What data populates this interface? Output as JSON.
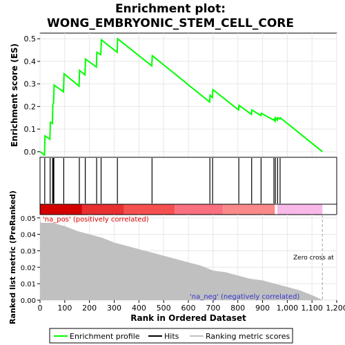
{
  "title_line1": "Enrichment plot:",
  "title_line2": "WONG_EMBRYONIC_STEM_CELL_CORE",
  "colors": {
    "es_line": "#00ff00",
    "hits": "#000000",
    "metric_fill": "#c0c0c0",
    "pos_label": "#e00000",
    "neg_label": "#3333cc",
    "zero_cross_line": "#a0a0a0"
  },
  "chart_data": [
    {
      "type": "line",
      "name": "enrichment-profile",
      "ylabel": "Enrichment score (ES)",
      "xlim": [
        0,
        1200
      ],
      "ylim": [
        -0.025,
        0.525
      ],
      "yticks": [
        0.0,
        0.1,
        0.2,
        0.3,
        0.4,
        0.5
      ],
      "ytick_labels": [
        "0.0",
        "0.1",
        "0.2",
        "0.3",
        "0.4",
        "0.5"
      ],
      "grid": true,
      "points": [
        [
          0,
          0.0
        ],
        [
          18,
          -0.015
        ],
        [
          20,
          0.07
        ],
        [
          40,
          0.055
        ],
        [
          42,
          0.13
        ],
        [
          50,
          0.125
        ],
        [
          52,
          0.21
        ],
        [
          55,
          0.215
        ],
        [
          57,
          0.295
        ],
        [
          95,
          0.265
        ],
        [
          97,
          0.345
        ],
        [
          158,
          0.29
        ],
        [
          160,
          0.36
        ],
        [
          182,
          0.34
        ],
        [
          184,
          0.41
        ],
        [
          228,
          0.375
        ],
        [
          230,
          0.44
        ],
        [
          246,
          0.43
        ],
        [
          248,
          0.495
        ],
        [
          312,
          0.44
        ],
        [
          314,
          0.5
        ],
        [
          452,
          0.38
        ],
        [
          454,
          0.425
        ],
        [
          686,
          0.22
        ],
        [
          688,
          0.25
        ],
        [
          697,
          0.24
        ],
        [
          699,
          0.275
        ],
        [
          803,
          0.185
        ],
        [
          805,
          0.205
        ],
        [
          855,
          0.165
        ],
        [
          857,
          0.185
        ],
        [
          893,
          0.16
        ],
        [
          895,
          0.17
        ],
        [
          945,
          0.14
        ],
        [
          947,
          0.145
        ],
        [
          951,
          0.135
        ],
        [
          953,
          0.15
        ],
        [
          960,
          0.14
        ],
        [
          962,
          0.15
        ],
        [
          970,
          0.145
        ],
        [
          972,
          0.15
        ],
        [
          1142,
          0.0
        ]
      ]
    },
    {
      "type": "hits",
      "name": "hits",
      "legend": "Hits",
      "x": [
        19,
        41,
        51,
        54,
        56,
        96,
        159,
        183,
        229,
        247,
        313,
        453,
        687,
        698,
        804,
        856,
        894,
        946,
        952,
        961,
        971
      ]
    },
    {
      "type": "area",
      "name": "ranking-metric",
      "legend": "Ranking metric scores",
      "xlabel": "Rank in Ordered Dataset",
      "ylabel": "Ranked list metric (PreRanked)",
      "xlim": [
        0,
        1200
      ],
      "ylim": [
        0,
        0.052
      ],
      "xticks": [
        0,
        100,
        200,
        300,
        400,
        500,
        600,
        700,
        800,
        900,
        1000,
        1100,
        1200
      ],
      "xtick_labels": [
        "0",
        "100",
        "200",
        "300",
        "400",
        "500",
        "600",
        "700",
        "800",
        "900",
        "1,000",
        "1,100",
        "1,200"
      ],
      "yticks": [
        0.0,
        0.01,
        0.02,
        0.03,
        0.04,
        0.05
      ],
      "ytick_labels": [
        "0.00",
        "0.01",
        "0.02",
        "0.03",
        "0.04",
        "0.05"
      ],
      "grid": true,
      "points": [
        [
          0,
          0.05
        ],
        [
          3,
          0.047
        ],
        [
          50,
          0.047
        ],
        [
          100,
          0.045
        ],
        [
          150,
          0.042
        ],
        [
          200,
          0.04
        ],
        [
          250,
          0.038
        ],
        [
          300,
          0.035
        ],
        [
          350,
          0.033
        ],
        [
          400,
          0.031
        ],
        [
          450,
          0.029
        ],
        [
          500,
          0.027
        ],
        [
          550,
          0.025
        ],
        [
          600,
          0.023
        ],
        [
          650,
          0.021
        ],
        [
          700,
          0.018
        ],
        [
          750,
          0.017
        ],
        [
          800,
          0.015
        ],
        [
          850,
          0.013
        ],
        [
          900,
          0.012
        ],
        [
          950,
          0.01
        ],
        [
          1000,
          0.008
        ],
        [
          1050,
          0.006
        ],
        [
          1100,
          0.003
        ],
        [
          1130,
          0.001
        ],
        [
          1142,
          0.0
        ]
      ],
      "pos_label": "'na_pos' (positively correlated)",
      "neg_label": "'na_neg' (negatively correlated)",
      "zero_cross_label": "Zero cross at",
      "zero_cross_x": 1142
    },
    {
      "type": "heatmap",
      "name": "rank-color-bar",
      "xlim": [
        0,
        1200
      ],
      "segments": [
        {
          "x0": 0,
          "x1": 170,
          "color": "#d40000"
        },
        {
          "x0": 170,
          "x1": 340,
          "color": "#e83030"
        },
        {
          "x0": 340,
          "x1": 545,
          "color": "#f55050"
        },
        {
          "x0": 545,
          "x1": 740,
          "color": "#fa7080"
        },
        {
          "x0": 740,
          "x1": 950,
          "color": "#fa8a8a"
        },
        {
          "x0": 950,
          "x1": 960,
          "color": "#ffffff"
        },
        {
          "x0": 960,
          "x1": 1142,
          "color": "#f8b8e8"
        }
      ]
    }
  ],
  "legend": {
    "items": [
      {
        "label": "Enrichment profile",
        "color": "#00ff00"
      },
      {
        "label": "Hits",
        "color": "#000000"
      },
      {
        "label": "Ranking metric scores",
        "color": "#c0c0c0"
      }
    ]
  }
}
